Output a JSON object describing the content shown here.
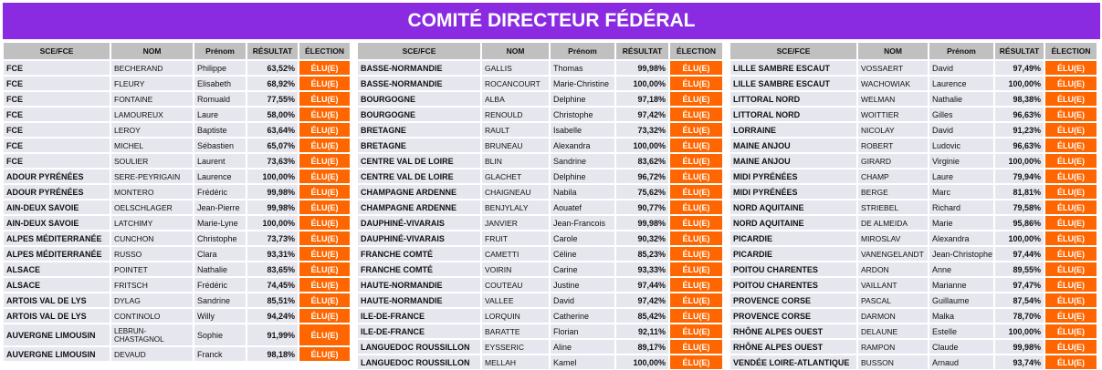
{
  "title": "COMITÉ DIRECTEUR FÉDÉRAL",
  "headers": [
    "SCE/FCE",
    "NOM",
    "Prénom",
    "RÉSULTAT",
    "ÉLECTION"
  ],
  "colors": {
    "banner": "#8a2be2",
    "header": "#c0c0c0",
    "cell": "#e6e6ef",
    "election": "#ff6600"
  },
  "tables": [
    {
      "rows": [
        [
          "FCE",
          "BECHERAND",
          "Philippe",
          "63,52%",
          "ÉLU(E)"
        ],
        [
          "FCE",
          "FLEURY",
          "Elisabeth",
          "68,92%",
          "ÉLU(E)"
        ],
        [
          "FCE",
          "FONTAINE",
          "Romuald",
          "77,55%",
          "ÉLU(E)"
        ],
        [
          "FCE",
          "LAMOUREUX",
          "Laure",
          "58,00%",
          "ÉLU(E)"
        ],
        [
          "FCE",
          "LEROY",
          "Baptiste",
          "63,64%",
          "ÉLU(E)"
        ],
        [
          "FCE",
          "MICHEL",
          "Sébastien",
          "65,07%",
          "ÉLU(E)"
        ],
        [
          "FCE",
          "SOULIER",
          "Laurent",
          "73,63%",
          "ÉLU(E)"
        ],
        [
          "ADOUR PYRÉNÉES",
          "SERE-PEYRIGAIN",
          "Laurence",
          "100,00%",
          "ÉLU(E)"
        ],
        [
          "ADOUR PYRÉNÉES",
          "MONTERO",
          "Frédéric",
          "99,98%",
          "ÉLU(E)"
        ],
        [
          "AIN-DEUX SAVOIE",
          "OELSCHLAGER",
          "Jean-Pierre",
          "99,98%",
          "ÉLU(E)"
        ],
        [
          "AIN-DEUX SAVOIE",
          "LATCHIMY",
          "Marie-Lyne",
          "100,00%",
          "ÉLU(E)"
        ],
        [
          "ALPES MÉDITERRANÉE",
          "CUNCHON",
          "Christophe",
          "73,73%",
          "ÉLU(E)"
        ],
        [
          "ALPES MÉDITERRANÉE",
          "RUSSO",
          "Clara",
          "93,31%",
          "ÉLU(E)"
        ],
        [
          "ALSACE",
          "POINTET",
          "Nathalie",
          "83,65%",
          "ÉLU(E)"
        ],
        [
          "ALSACE",
          "FRITSCH",
          "Frédéric",
          "74,45%",
          "ÉLU(E)"
        ],
        [
          "ARTOIS  VAL DE LYS",
          "DYLAG",
          "Sandrine",
          "85,51%",
          "ÉLU(E)"
        ],
        [
          "ARTOIS  VAL DE LYS",
          "CONTINOLO",
          "Willy",
          "94,24%",
          "ÉLU(E)"
        ],
        [
          "AUVERGNE LIMOUSIN",
          "LEBRUN-CHASTAGNOL",
          "Sophie",
          "91,99%",
          "ÉLU(E)"
        ],
        [
          "AUVERGNE LIMOUSIN",
          "DEVAUD",
          "Franck",
          "98,18%",
          "ÉLU(E)"
        ]
      ]
    },
    {
      "rows": [
        [
          "BASSE-NORMANDIE",
          "GALLIS",
          "Thomas",
          "99,98%",
          "ÉLU(E)"
        ],
        [
          "BASSE-NORMANDIE",
          "ROCANCOURT",
          "Marie-Christine",
          "100,00%",
          "ÉLU(E)"
        ],
        [
          "BOURGOGNE",
          "ALBA",
          "Delphine",
          "97,18%",
          "ÉLU(E)"
        ],
        [
          "BOURGOGNE",
          "RENOULD",
          "Christophe",
          "97,42%",
          "ÉLU(E)"
        ],
        [
          "BRETAGNE",
          "RAULT",
          "Isabelle",
          "73,32%",
          "ÉLU(E)"
        ],
        [
          "BRETAGNE",
          "BRUNEAU",
          "Alexandra",
          "100,00%",
          "ÉLU(E)"
        ],
        [
          "CENTRE VAL DE LOIRE",
          "BLIN",
          "Sandrine",
          "83,62%",
          "ÉLU(E)"
        ],
        [
          "CENTRE VAL DE LOIRE",
          "GLACHET",
          "Delphine",
          "96,72%",
          "ÉLU(E)"
        ],
        [
          "CHAMPAGNE  ARDENNE",
          "CHAIGNEAU",
          "Nabila",
          "75,62%",
          "ÉLU(E)"
        ],
        [
          "CHAMPAGNE  ARDENNE",
          "BENJYLALY",
          "Aouatef",
          "90,77%",
          "ÉLU(E)"
        ],
        [
          "DAUPHINÉ-VIVARAIS",
          "JANVIER",
          "Jean-Francois",
          "99,98%",
          "ÉLU(E)"
        ],
        [
          "DAUPHINÉ-VIVARAIS",
          "FRUIT",
          "Carole",
          "90,32%",
          "ÉLU(E)"
        ],
        [
          "FRANCHE COMTÉ",
          "CAMETTI",
          "Céline",
          "85,23%",
          "ÉLU(E)"
        ],
        [
          "FRANCHE COMTÉ",
          "VOIRIN",
          "Carine",
          "93,33%",
          "ÉLU(E)"
        ],
        [
          "HAUTE-NORMANDIE",
          "COUTEAU",
          "Justine",
          "97,44%",
          "ÉLU(E)"
        ],
        [
          "HAUTE-NORMANDIE",
          "VALLEE",
          "David",
          "97,42%",
          "ÉLU(E)"
        ],
        [
          "ILE-DE-FRANCE",
          "LORQUIN",
          "Catherine",
          "85,42%",
          "ÉLU(E)"
        ],
        [
          "ILE-DE-FRANCE",
          "BARATTE",
          "Florian",
          "92,11%",
          "ÉLU(E)"
        ],
        [
          "LANGUEDOC ROUSSILLON",
          "EYSSERIC",
          "Aline",
          "89,17%",
          "ÉLU(E)"
        ],
        [
          "LANGUEDOC ROUSSILLON",
          "MELLAH",
          "Kamel",
          "100,00%",
          "ÉLU(E)"
        ]
      ]
    },
    {
      "rows": [
        [
          "LILLE SAMBRE ESCAUT",
          "VOSSAERT",
          "David",
          "97,49%",
          "ÉLU(E)"
        ],
        [
          "LILLE SAMBRE ESCAUT",
          "WACHOWIAK",
          "Laurence",
          "100,00%",
          "ÉLU(E)"
        ],
        [
          "LITTORAL  NORD",
          "WELMAN",
          "Nathalie",
          "98,38%",
          "ÉLU(E)"
        ],
        [
          "LITTORAL  NORD",
          "WOITTIER",
          "Gilles",
          "96,63%",
          "ÉLU(E)"
        ],
        [
          "LORRAINE",
          "NICOLAY",
          "David",
          "91,23%",
          "ÉLU(E)"
        ],
        [
          "MAINE ANJOU",
          "ROBERT",
          "Ludovic",
          "96,63%",
          "ÉLU(E)"
        ],
        [
          "MAINE ANJOU",
          "GIRARD",
          "Virginie",
          "100,00%",
          "ÉLU(E)"
        ],
        [
          "MIDI PYRÉNÉES",
          "CHAMP",
          "Laure",
          "79,94%",
          "ÉLU(E)"
        ],
        [
          "MIDI PYRÉNÉES",
          "BERGE",
          "Marc",
          "81,81%",
          "ÉLU(E)"
        ],
        [
          "NORD AQUITAINE",
          "STRIEBEL",
          "Richard",
          "79,58%",
          "ÉLU(E)"
        ],
        [
          "NORD AQUITAINE",
          "DE ALMEIDA",
          "Marie",
          "95,86%",
          "ÉLU(E)"
        ],
        [
          "PICARDIE",
          "MIROSLAV",
          "Alexandra",
          "100,00%",
          "ÉLU(E)"
        ],
        [
          "PICARDIE",
          "VANENGELANDT",
          "Jean-Christophe",
          "97,44%",
          "ÉLU(E)"
        ],
        [
          "POITOU CHARENTES",
          "ARDON",
          "Anne",
          "89,55%",
          "ÉLU(E)"
        ],
        [
          "POITOU CHARENTES",
          "VAILLANT",
          "Marianne",
          "97,47%",
          "ÉLU(E)"
        ],
        [
          "PROVENCE CORSE",
          "PASCAL",
          "Guillaume",
          "87,54%",
          "ÉLU(E)"
        ],
        [
          "PROVENCE CORSE",
          "DARMON",
          "Malka",
          "78,70%",
          "ÉLU(E)"
        ],
        [
          "RHÔNE ALPES OUEST",
          "DELAUNE",
          "Estelle",
          "100,00%",
          "ÉLU(E)"
        ],
        [
          "RHÔNE ALPES OUEST",
          "RAMPON",
          "Claude",
          "99,98%",
          "ÉLU(E)"
        ],
        [
          "VENDÉE LOIRE-ATLANTIQUE",
          "BUSSON",
          "Arnaud",
          "93,74%",
          "ÉLU(E)"
        ]
      ]
    }
  ]
}
